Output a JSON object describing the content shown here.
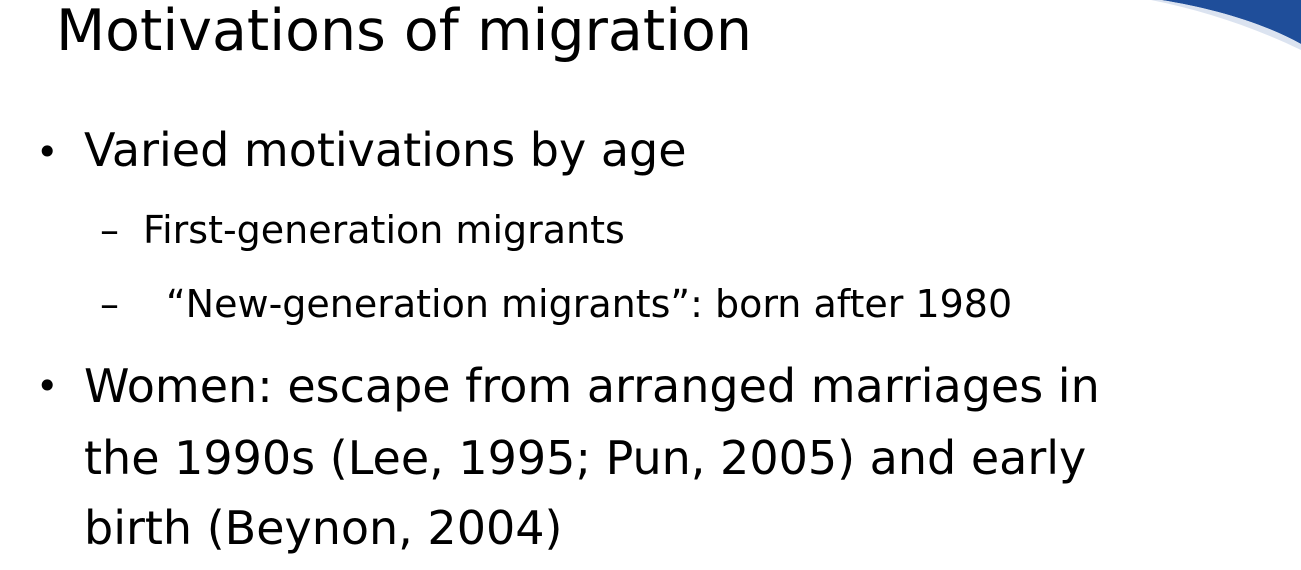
{
  "slide": {
    "title": "Motivations of migration",
    "bullets": [
      {
        "marker": "•",
        "text": "Varied motivations by age",
        "subitems": [
          {
            "marker": "–",
            "text": "First-generation migrants"
          },
          {
            "marker": "–",
            "text": "“New-generation migrants”: born after 1980"
          }
        ]
      },
      {
        "marker": "•",
        "lines": [
          "Women: escape from arranged marriages in",
          "the 1990s (Lee, 1995; Pun, 2005) and early",
          "birth (Beynon, 2004)"
        ]
      }
    ],
    "colors": {
      "accent": "#1f4e9a",
      "text": "#000000",
      "background": "#ffffff"
    }
  }
}
